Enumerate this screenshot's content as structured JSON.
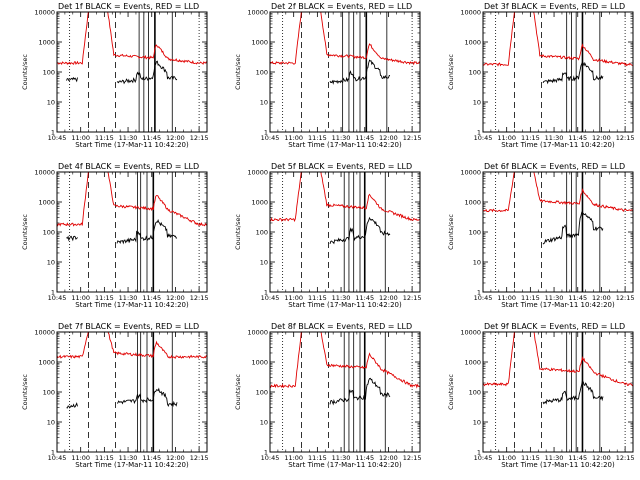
{
  "chart_data": {
    "type": "line",
    "layout": "3x3 panel grid",
    "yscale": "log",
    "ylim": [
      1,
      10000
    ],
    "y_ticks": [
      1,
      10,
      100,
      1000,
      10000
    ],
    "y_tick_labels": [
      "1",
      "10",
      "100",
      "1000",
      "10000"
    ],
    "x_range_minutes": [
      0,
      95
    ],
    "x_ticks_minutes": [
      0,
      15,
      30,
      45,
      60,
      75,
      90
    ],
    "x_tick_labels": [
      "10:45",
      "11:00",
      "11:15",
      "11:30",
      "11:45",
      "12:00",
      "12:15"
    ],
    "xlabel": "Start Time (17-Mar-11 10:42:20)",
    "ylabel": "Counts/sec",
    "series_legend": {
      "events": "BLACK = Events",
      "lld": "RED = LLD"
    },
    "series_colors": {
      "events": "#000000",
      "lld": "#e00000"
    },
    "markers": {
      "dotted_minutes": [
        8,
        90
      ],
      "dashed_minutes": [
        20,
        37
      ]
    },
    "panels": [
      {
        "detector": "1f",
        "title": "Det 1f BLACK = Events, RED = LLD",
        "lld_baseline": 200,
        "events_baseline": 70,
        "events_start_minute": 6,
        "events_second_min": 45,
        "lld_spike_end": 370,
        "solid_lines_minutes": [
          52,
          55,
          58,
          62,
          73
        ]
      },
      {
        "detector": "2f",
        "title": "Det 2f BLACK = Events, RED = LLD",
        "lld_baseline": 200,
        "events_baseline": 75,
        "events_start_minute": 14,
        "events_second_min": 45,
        "lld_spike_end": 380,
        "solid_lines_minutes": [
          46,
          50,
          53,
          57,
          61,
          74
        ]
      },
      {
        "detector": "3f",
        "title": "Det 3f BLACK = Events, RED = LLD",
        "lld_baseline": 180,
        "events_baseline": 70,
        "events_start_minute": 14,
        "events_second_min": 46,
        "lld_spike_end": 350,
        "solid_lines_minutes": [
          53,
          56,
          59,
          63,
          74
        ]
      },
      {
        "detector": "4f",
        "title": "Det 4f BLACK = Events, RED = LLD",
        "lld_baseline": 180,
        "events_baseline": 80,
        "events_start_minute": 6,
        "events_second_min": 45,
        "lld_spike_end": 750,
        "solid_lines_minutes": [
          51,
          53,
          57,
          61,
          73
        ]
      },
      {
        "detector": "5f",
        "title": "Det 5f BLACK = Events, RED = LLD",
        "lld_baseline": 260,
        "events_baseline": 100,
        "events_start_minute": 14,
        "events_second_min": 46,
        "lld_spike_end": 800,
        "solid_lines_minutes": [
          47,
          50,
          53,
          57,
          60,
          73
        ]
      },
      {
        "detector": "6f",
        "title": "Det 6f BLACK = Events, RED = LLD",
        "lld_baseline": 520,
        "events_baseline": 150,
        "events_start_minute": 14,
        "events_second_min": 46,
        "lld_spike_end": 1100,
        "solid_lines_minutes": [
          53,
          56,
          59,
          63,
          74
        ]
      },
      {
        "detector": "7f",
        "title": "Det 7f BLACK = Events, RED = LLD",
        "lld_baseline": 1500,
        "events_baseline": 45,
        "events_start_minute": 6,
        "events_second_min": 45,
        "lld_spike_end": 2000,
        "solid_lines_minutes": [
          51,
          53,
          57,
          61,
          73
        ]
      },
      {
        "detector": "8f",
        "title": "Det 8f BLACK = Events, RED = LLD",
        "lld_baseline": 160,
        "events_baseline": 90,
        "events_start_minute": 14,
        "events_second_min": 45,
        "lld_spike_end": 800,
        "solid_lines_minutes": [
          47,
          50,
          53,
          57,
          60,
          73
        ]
      },
      {
        "detector": "9f",
        "title": "Det 9f BLACK = Events, RED = LLD",
        "lld_baseline": 180,
        "events_baseline": 70,
        "events_start_minute": 14,
        "events_second_min": 46,
        "lld_spike_end": 600,
        "solid_lines_minutes": [
          53,
          56,
          59,
          63,
          74
        ]
      }
    ]
  }
}
